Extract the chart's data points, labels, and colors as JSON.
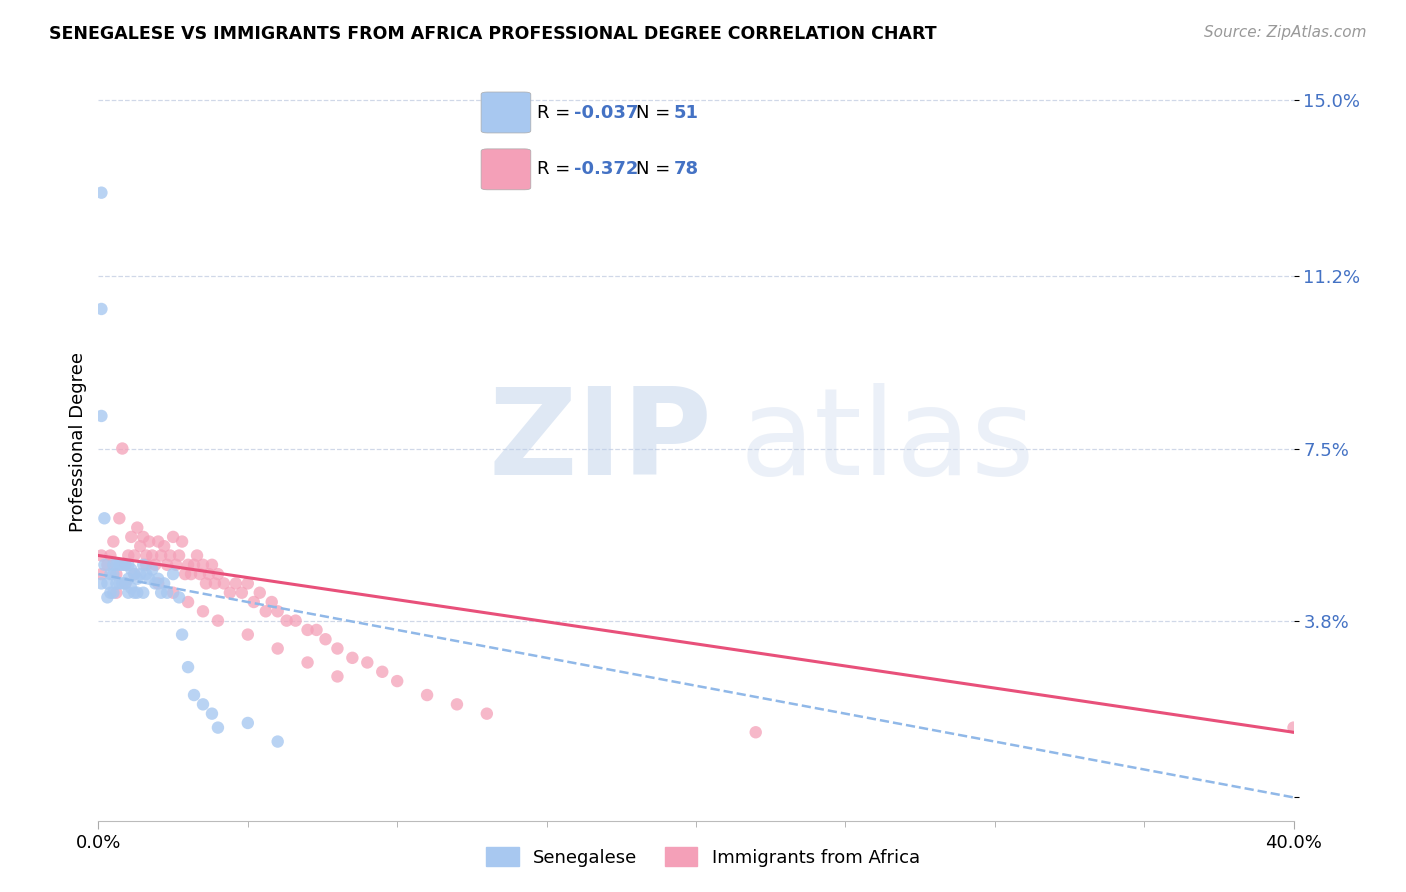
{
  "title": "SENEGALESE VS IMMIGRANTS FROM AFRICA PROFESSIONAL DEGREE CORRELATION CHART",
  "source": "Source: ZipAtlas.com",
  "ylabel": "Professional Degree",
  "ytick_vals": [
    0.0,
    0.038,
    0.075,
    0.112,
    0.15
  ],
  "ytick_labels": [
    "",
    "3.8%",
    "7.5%",
    "11.2%",
    "15.0%"
  ],
  "xlim": [
    0.0,
    0.4
  ],
  "ylim": [
    -0.005,
    0.158
  ],
  "legend_blue_r": "-0.037",
  "legend_blue_n": "51",
  "legend_pink_r": "-0.372",
  "legend_pink_n": "78",
  "senegalese_color": "#a8c8f0",
  "immigrants_color": "#f4a0b8",
  "trend_blue_color": "#90b8e8",
  "trend_pink_color": "#e8507a",
  "tick_color": "#4472c4",
  "grid_color": "#d0d8e8",
  "senegalese_label": "Senegalese",
  "immigrants_label": "Immigrants from Africa",
  "blue_scatter_x": [
    0.001,
    0.001,
    0.001,
    0.001,
    0.002,
    0.002,
    0.003,
    0.003,
    0.004,
    0.004,
    0.005,
    0.005,
    0.005,
    0.006,
    0.006,
    0.007,
    0.007,
    0.008,
    0.008,
    0.009,
    0.009,
    0.01,
    0.01,
    0.01,
    0.011,
    0.011,
    0.012,
    0.012,
    0.013,
    0.013,
    0.014,
    0.015,
    0.015,
    0.016,
    0.017,
    0.018,
    0.019,
    0.02,
    0.021,
    0.022,
    0.023,
    0.025,
    0.027,
    0.028,
    0.03,
    0.032,
    0.035,
    0.038,
    0.04,
    0.05,
    0.06
  ],
  "blue_scatter_y": [
    0.13,
    0.105,
    0.082,
    0.046,
    0.06,
    0.05,
    0.046,
    0.043,
    0.048,
    0.044,
    0.05,
    0.048,
    0.044,
    0.05,
    0.046,
    0.05,
    0.046,
    0.05,
    0.046,
    0.05,
    0.046,
    0.05,
    0.047,
    0.044,
    0.049,
    0.045,
    0.048,
    0.044,
    0.047,
    0.044,
    0.048,
    0.05,
    0.044,
    0.048,
    0.047,
    0.049,
    0.046,
    0.047,
    0.044,
    0.046,
    0.044,
    0.048,
    0.043,
    0.035,
    0.028,
    0.022,
    0.02,
    0.018,
    0.015,
    0.016,
    0.012
  ],
  "pink_scatter_x": [
    0.001,
    0.003,
    0.005,
    0.006,
    0.007,
    0.008,
    0.009,
    0.01,
    0.011,
    0.012,
    0.013,
    0.014,
    0.015,
    0.016,
    0.017,
    0.018,
    0.019,
    0.02,
    0.021,
    0.022,
    0.023,
    0.024,
    0.025,
    0.026,
    0.027,
    0.028,
    0.029,
    0.03,
    0.031,
    0.032,
    0.033,
    0.034,
    0.035,
    0.036,
    0.037,
    0.038,
    0.039,
    0.04,
    0.042,
    0.044,
    0.046,
    0.048,
    0.05,
    0.052,
    0.054,
    0.056,
    0.058,
    0.06,
    0.063,
    0.066,
    0.07,
    0.073,
    0.076,
    0.08,
    0.085,
    0.09,
    0.095,
    0.1,
    0.11,
    0.12,
    0.001,
    0.004,
    0.006,
    0.009,
    0.012,
    0.016,
    0.02,
    0.025,
    0.03,
    0.035,
    0.04,
    0.05,
    0.06,
    0.07,
    0.08,
    0.13,
    0.22,
    0.4
  ],
  "pink_scatter_y": [
    0.052,
    0.05,
    0.055,
    0.048,
    0.06,
    0.075,
    0.05,
    0.052,
    0.056,
    0.052,
    0.058,
    0.054,
    0.056,
    0.052,
    0.055,
    0.052,
    0.05,
    0.055,
    0.052,
    0.054,
    0.05,
    0.052,
    0.056,
    0.05,
    0.052,
    0.055,
    0.048,
    0.05,
    0.048,
    0.05,
    0.052,
    0.048,
    0.05,
    0.046,
    0.048,
    0.05,
    0.046,
    0.048,
    0.046,
    0.044,
    0.046,
    0.044,
    0.046,
    0.042,
    0.044,
    0.04,
    0.042,
    0.04,
    0.038,
    0.038,
    0.036,
    0.036,
    0.034,
    0.032,
    0.03,
    0.029,
    0.027,
    0.025,
    0.022,
    0.02,
    0.048,
    0.052,
    0.044,
    0.046,
    0.048,
    0.05,
    0.046,
    0.044,
    0.042,
    0.04,
    0.038,
    0.035,
    0.032,
    0.029,
    0.026,
    0.018,
    0.014,
    0.015
  ],
  "trend_blue_start_x": 0.0,
  "trend_blue_end_x": 0.4,
  "trend_blue_start_y": 0.048,
  "trend_blue_end_y": 0.0,
  "trend_pink_start_x": 0.0,
  "trend_pink_end_x": 0.4,
  "trend_pink_start_y": 0.052,
  "trend_pink_end_y": 0.014
}
